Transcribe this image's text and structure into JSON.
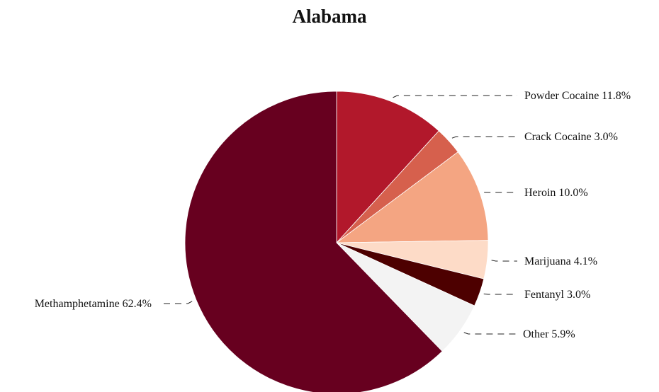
{
  "chart_data": {
    "type": "pie",
    "title": "Alabama",
    "slices": [
      {
        "label": "Powder Cocaine",
        "value": 11.8,
        "display": "Powder Cocaine 11.8%",
        "color": "#b2182b"
      },
      {
        "label": "Crack Cocaine",
        "value": 3.0,
        "display": "Crack Cocaine 3.0%",
        "color": "#d6604d"
      },
      {
        "label": "Heroin",
        "value": 10.0,
        "display": "Heroin 10.0%",
        "color": "#f4a582"
      },
      {
        "label": "Marijuana",
        "value": 4.1,
        "display": "Marijuana 4.1%",
        "color": "#fddbc7"
      },
      {
        "label": "Fentanyl",
        "value": 3.0,
        "display": "Fentanyl 3.0%",
        "color": "#4d0000"
      },
      {
        "label": "Other",
        "value": 5.9,
        "display": "Other 5.9%",
        "color": "#f3f3f3"
      },
      {
        "label": "Methamphetamine",
        "value": 62.4,
        "display": "Methamphetamine 62.4%",
        "color": "#67001f"
      }
    ],
    "start_angle": "12 o'clock",
    "direction": "clockwise",
    "legend": "none",
    "label_style": "outside labels with dashed leader lines"
  }
}
